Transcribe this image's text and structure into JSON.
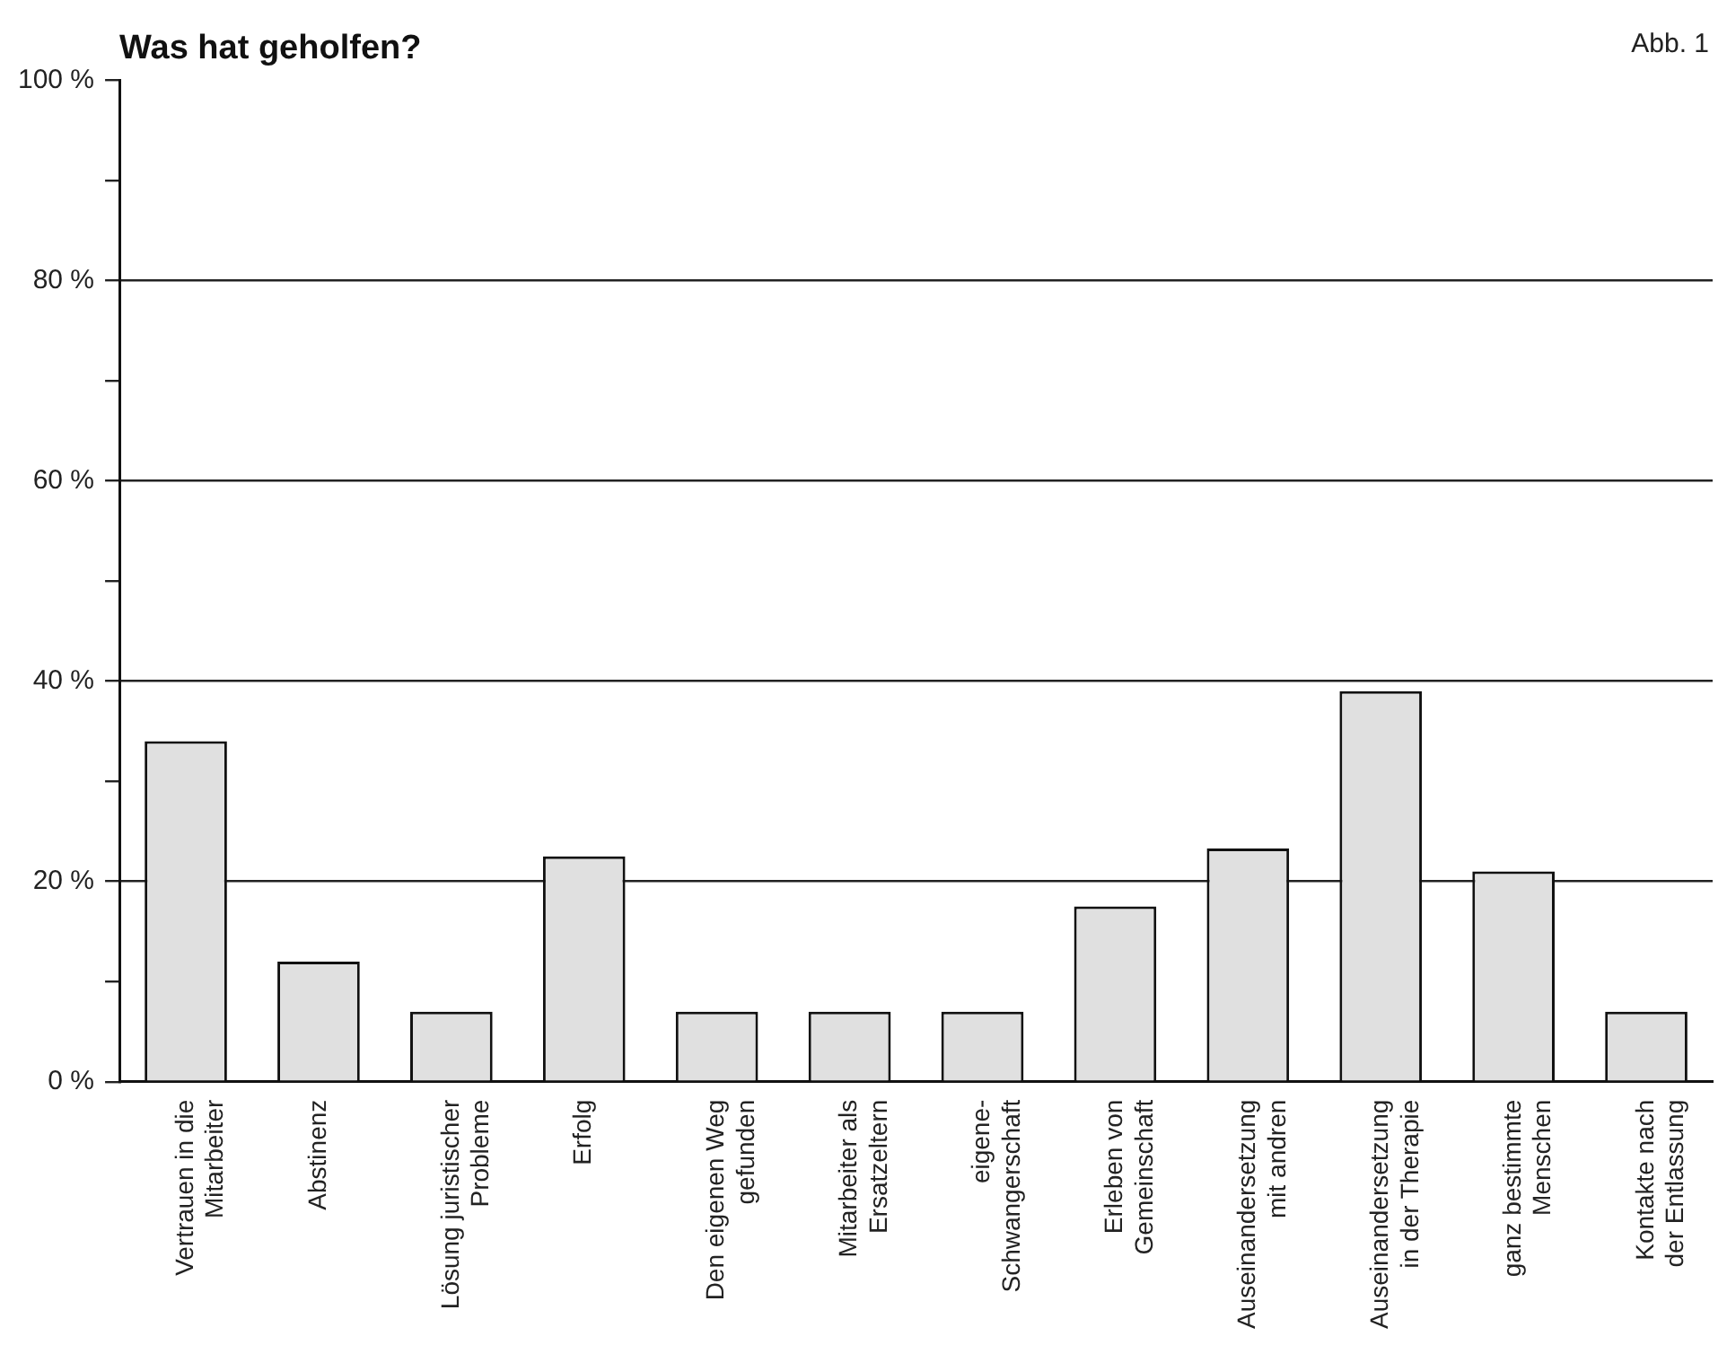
{
  "chart_data": {
    "type": "bar",
    "title": "Was hat geholfen?",
    "annotations": [
      "Abb. 1"
    ],
    "categories": [
      "Vertrauen in die\nMitarbeiter",
      "Abstinenz",
      "Lösung juristischer\nProbleme",
      "Erfolg",
      "Den eigenen Weg\ngefunden",
      "Mitarbeiter als\nErsatzeltern",
      "eigene-\nSchwangerschaft",
      "Erleben von\nGemeinschaft",
      "Auseinandersetzung\nmit andren",
      "Auseinandersetzung\nin der Therapie",
      "ganz bestimmte\nMenschen",
      "Kontakte nach\nder Entlassung"
    ],
    "values": [
      34,
      12,
      7,
      22.5,
      7,
      7,
      7,
      17.5,
      23.3,
      39,
      21,
      7
    ],
    "color": "#e0e0e0",
    "ylim": [
      0,
      100
    ],
    "yticks": [
      {
        "value": 0,
        "label": "0 %"
      },
      {
        "value": 10,
        "label": null
      },
      {
        "value": 20,
        "label": "20 %"
      },
      {
        "value": 30,
        "label": null
      },
      {
        "value": 40,
        "label": "40 %"
      },
      {
        "value": 50,
        "label": null
      },
      {
        "value": 60,
        "label": "60 %"
      },
      {
        "value": 70,
        "label": null
      },
      {
        "value": 80,
        "label": "80 %"
      },
      {
        "value": 90,
        "label": null
      },
      {
        "value": 100,
        "label": "100 %"
      }
    ],
    "grid": "y",
    "legend": false
  }
}
